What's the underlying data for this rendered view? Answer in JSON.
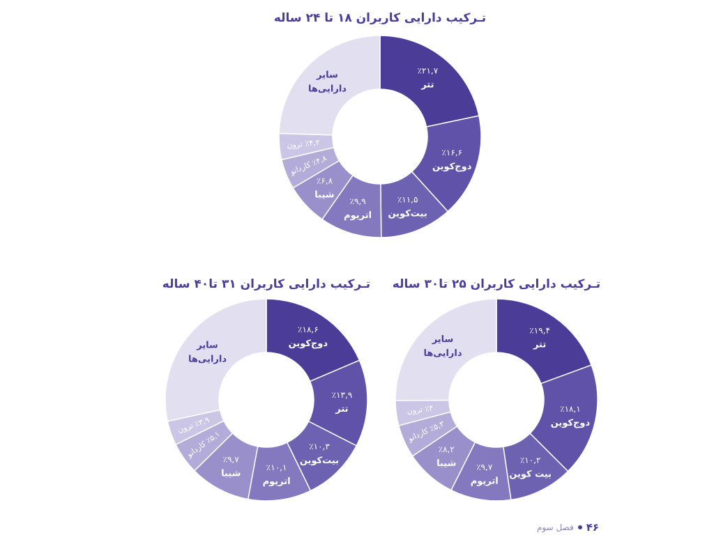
{
  "chart_data": [
    {
      "type": "pie",
      "title": "تـرکیب دارایی کاربران ۱۸ تا ۲۴ ساله",
      "slices": [
        {
          "label": "تتر",
          "value": 21.7,
          "value_label": "٪۲۱,۷",
          "color": "#4b3c98"
        },
        {
          "label": "دوج‌کوین",
          "value": 16.6,
          "value_label": "٪۱۶,۶",
          "color": "#5f52a8"
        },
        {
          "label": "بیت‌کوین",
          "value": 11.5,
          "value_label": "٪۱۱,۵",
          "color": "#6d61b2"
        },
        {
          "label": "اتریوم",
          "value": 9.9,
          "value_label": "٪۹,۹",
          "color": "#8479bf"
        },
        {
          "label": "شیبا",
          "value": 6.8,
          "value_label": "٪۶,۸",
          "color": "#9990cb"
        },
        {
          "label": "کاردانو",
          "value": 4.8,
          "value_label": "٪۴,۸",
          "color": "#b3acd9"
        },
        {
          "label": "ترون",
          "value": 4.2,
          "value_label": "٪۴,۲",
          "color": "#cbc6e6"
        },
        {
          "label": "سایر دارایی‌ها",
          "value": 24.5,
          "value_label": "",
          "color": "#e2dff1"
        }
      ]
    },
    {
      "type": "pie",
      "title": "تـرکیب دارایی کاربران ۲۵ تا۳۰ ساله",
      "slices": [
        {
          "label": "تتر",
          "value": 19.4,
          "value_label": "٪۱۹,۴",
          "color": "#4b3c98"
        },
        {
          "label": "دوج‌کوین",
          "value": 18.1,
          "value_label": "٪۱۸,۱",
          "color": "#5f52a8"
        },
        {
          "label": "بیت کوین",
          "value": 10.2,
          "value_label": "٪۱۰,۲",
          "color": "#6d61b2"
        },
        {
          "label": "اتریوم",
          "value": 9.7,
          "value_label": "٪۹,۷",
          "color": "#8479bf"
        },
        {
          "label": "شیبا",
          "value": 8.2,
          "value_label": "٪۸,۲",
          "color": "#9990cb"
        },
        {
          "label": "کاردانو",
          "value": 5.3,
          "value_label": "٪۵,۳",
          "color": "#b3acd9"
        },
        {
          "label": "ترون",
          "value": 4,
          "value_label": "٪۴",
          "color": "#cbc6e6"
        },
        {
          "label": "سایر دارایی‌ها",
          "value": 25.1,
          "value_label": "",
          "color": "#e2dff1"
        }
      ]
    },
    {
      "type": "pie",
      "title": "تـرکیب دارایی کاربران ۳۱ تا۴۰ ساله",
      "slices": [
        {
          "label": "دوج‌کوین",
          "value": 18.6,
          "value_label": "٪۱۸,۶",
          "color": "#4b3c98"
        },
        {
          "label": "تتر",
          "value": 13.9,
          "value_label": "٪۱۳,۹",
          "color": "#5f52a8"
        },
        {
          "label": "بیت‌کوین",
          "value": 10.3,
          "value_label": "٪۱۰,۳",
          "color": "#6d61b2"
        },
        {
          "label": "اتریوم",
          "value": 10.1,
          "value_label": "٪۱۰,۱",
          "color": "#8479bf"
        },
        {
          "label": "شیبا",
          "value": 9.7,
          "value_label": "٪۹,۷",
          "color": "#9990cb"
        },
        {
          "label": "کاردانو",
          "value": 5.1,
          "value_label": "٪۵,۱",
          "color": "#b3acd9"
        },
        {
          "label": "ترون",
          "value": 3.9,
          "value_label": "٪۳,۹",
          "color": "#cbc6e6"
        },
        {
          "label": "سایر دارایی‌ها",
          "value": 28.4,
          "value_label": "",
          "color": "#e2dff1"
        }
      ]
    }
  ],
  "footer": {
    "page_number": "۴۶",
    "chapter": "فصل سوم"
  }
}
